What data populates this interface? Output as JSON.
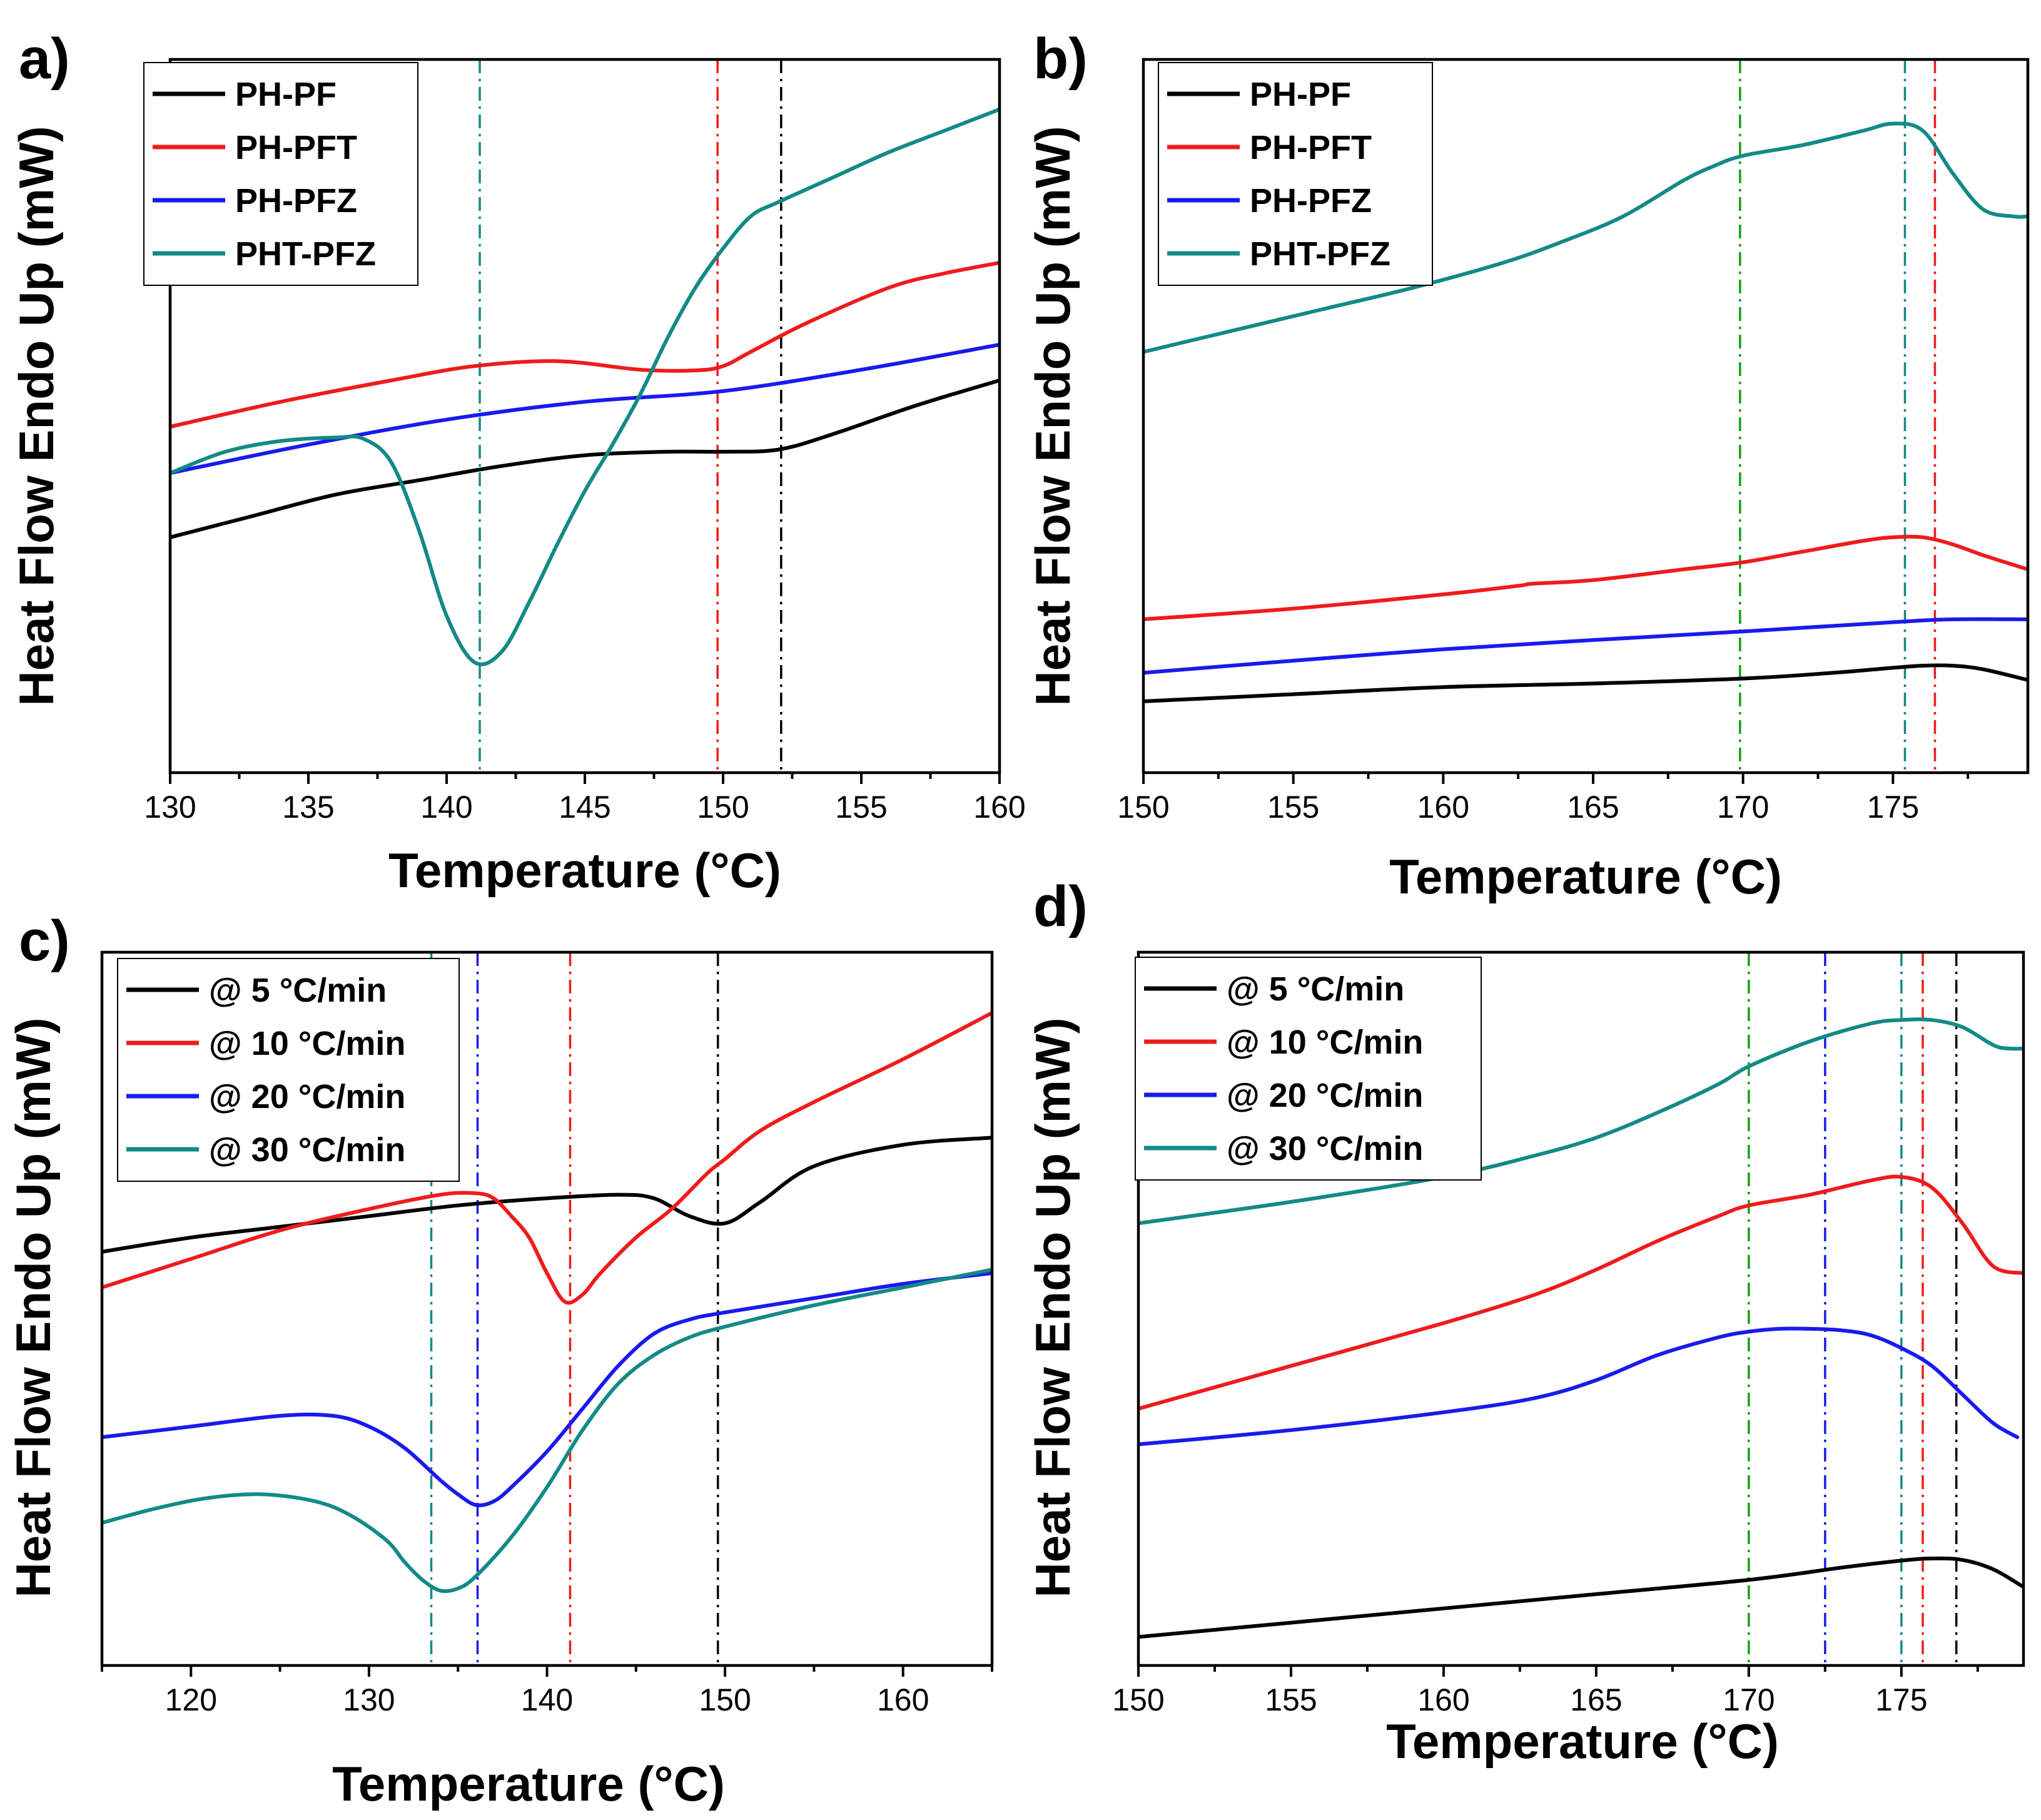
{
  "colors": {
    "black": "#000000",
    "red": "#ee1c1c",
    "blue": "#1a1aee",
    "teal": "#138a85",
    "green": "#12a012",
    "axis": "#000000"
  },
  "chart_data": [
    {
      "panel": "a)",
      "type": "line",
      "xlabel": "Temperature (°C)",
      "ylabel": "Heat Flow Endo Up (mW)",
      "xlim": [
        130,
        160
      ],
      "ylim": [
        0,
        100
      ],
      "xticks": [
        "130",
        "135",
        "140",
        "145",
        "150",
        "155",
        "160"
      ],
      "legend_position": "top-left",
      "series": [
        {
          "name": "PH-PF",
          "color": "#000000",
          "x": [
            130,
            133,
            136,
            139,
            142,
            145,
            148,
            150,
            152,
            154,
            157,
            160
          ],
          "y": [
            33,
            36,
            39,
            41,
            43,
            44.5,
            45,
            45,
            45.3,
            47.5,
            51.5,
            55
          ]
        },
        {
          "name": "PH-PFT",
          "color": "#ee1c1c",
          "x": [
            130,
            134,
            138,
            141,
            144,
            147,
            149,
            150,
            151,
            153,
            156,
            158,
            160
          ],
          "y": [
            48.5,
            52,
            55,
            57,
            57.7,
            56.5,
            56.4,
            57,
            59,
            63,
            68,
            70,
            71.5
          ]
        },
        {
          "name": "PH-PFZ",
          "color": "#1a1aee",
          "x": [
            130,
            135,
            140,
            145,
            150,
            155,
            160
          ],
          "y": [
            42,
            46,
            49.5,
            52,
            53.5,
            56.5,
            60
          ]
        },
        {
          "name": "PHT-PFZ",
          "color": "#138a85",
          "x": [
            130,
            132,
            134,
            136,
            137,
            138,
            139,
            140,
            141,
            142,
            143,
            144,
            145,
            146,
            147,
            148,
            149,
            150,
            151,
            152,
            154,
            156,
            158,
            160
          ],
          "y": [
            42,
            45,
            46.5,
            47,
            46.8,
            43.5,
            34,
            22,
            15.5,
            17,
            24,
            32,
            39.5,
            46,
            53,
            61,
            68,
            73.5,
            78,
            80,
            83.5,
            87,
            90,
            93
          ]
        }
      ],
      "vlines": [
        {
          "x": 141.2,
          "color": "#138a85"
        },
        {
          "x": 149.8,
          "color": "#ee1c1c"
        },
        {
          "x": 152.1,
          "color": "#000000"
        }
      ]
    },
    {
      "panel": "b)",
      "type": "line",
      "xlabel": "Temperature (°C)",
      "ylabel": "Heat Flow Endo Up (mW)",
      "xlim": [
        150,
        179.5
      ],
      "ylim": [
        0,
        100
      ],
      "xticks": [
        "150",
        "155",
        "160",
        "165",
        "170",
        "175"
      ],
      "legend_position": "top-left",
      "series": [
        {
          "name": "PH-PF",
          "color": "#000000",
          "x": [
            150,
            155,
            160,
            165,
            170,
            173,
            175,
            176,
            177,
            178,
            179.5
          ],
          "y": [
            10,
            11,
            12,
            12.5,
            13.2,
            14,
            14.7,
            15,
            15,
            14.5,
            13
          ]
        },
        {
          "name": "PH-PFT",
          "color": "#ee1c1c",
          "x": [
            150,
            155,
            160,
            162.5,
            163,
            165,
            168,
            170,
            172,
            174,
            175,
            176,
            177,
            178,
            179.5
          ],
          "y": [
            21.5,
            23,
            25,
            26.2,
            26.5,
            27,
            28.5,
            29.5,
            31,
            32.5,
            33,
            33,
            32,
            30.5,
            28.5
          ]
        },
        {
          "name": "PH-PFZ",
          "color": "#1a1aee",
          "x": [
            150,
            155,
            160,
            165,
            170,
            175,
            177,
            179.5
          ],
          "y": [
            14,
            15.7,
            17.3,
            18.6,
            19.8,
            21.1,
            21.5,
            21.5
          ]
        },
        {
          "name": "PHT-PFZ",
          "color": "#138a85",
          "x": [
            150,
            153,
            156,
            159,
            162,
            164,
            166,
            168,
            169,
            170,
            172,
            174,
            175,
            176,
            177,
            178,
            179,
            179.5
          ],
          "y": [
            59,
            62,
            65,
            68,
            71.5,
            74.5,
            78,
            83,
            85,
            86.5,
            88,
            90,
            91,
            90,
            84,
            79,
            78,
            78
          ]
        }
      ],
      "vlines": [
        {
          "x": 169.9,
          "color": "#12a012"
        },
        {
          "x": 175.4,
          "color": "#138a85"
        },
        {
          "x": 176.4,
          "color": "#ee1c1c"
        }
      ]
    },
    {
      "panel": "c)",
      "type": "line",
      "xlabel": "Temperature (°C)",
      "ylabel": "Heat Flow Endo Up (mW)",
      "xlim": [
        115,
        165
      ],
      "ylim": [
        0,
        100
      ],
      "xticks": [
        "120",
        "130",
        "140",
        "150",
        "160"
      ],
      "legend_position": "top-left",
      "series": [
        {
          "name": "@ 5 °C/min",
          "color": "#000000",
          "x": [
            115,
            120,
            125,
            130,
            135,
            140,
            144,
            146,
            148,
            150,
            152,
            155,
            160,
            165
          ],
          "y": [
            58,
            60,
            61.5,
            63,
            64.5,
            65.5,
            66,
            65.5,
            63,
            62,
            65,
            70,
            73,
            74
          ]
        },
        {
          "name": "@ 10 °C/min",
          "color": "#ee1c1c",
          "x": [
            115,
            120,
            125,
            130,
            134,
            136,
            137,
            138,
            139,
            140,
            141,
            142,
            143,
            145,
            147,
            149,
            150,
            152,
            155,
            160,
            165
          ],
          "y": [
            53,
            57,
            61,
            64,
            66,
            66.2,
            65.5,
            63,
            60,
            55,
            51,
            52,
            55,
            60,
            64,
            69,
            71,
            75,
            79,
            85,
            91.5
          ]
        },
        {
          "name": "@ 20 °C/min",
          "color": "#1a1aee",
          "x": [
            115,
            120,
            125,
            128,
            130,
            132,
            134,
            135,
            136,
            137,
            138,
            140,
            142,
            144,
            146,
            148,
            150,
            155,
            160,
            165
          ],
          "y": [
            32,
            33.5,
            35,
            35,
            33.5,
            30.5,
            26,
            24,
            22.5,
            23,
            25,
            30,
            36,
            42,
            46.5,
            48.5,
            49.5,
            51.5,
            53.5,
            55
          ]
        },
        {
          "name": "@ 30 °C/min",
          "color": "#138a85",
          "x": [
            115,
            118,
            121,
            124,
            127,
            129,
            131,
            132,
            133,
            134,
            135,
            136,
            138,
            140,
            142,
            144,
            146,
            148,
            150,
            155,
            160,
            165
          ],
          "y": [
            20,
            22,
            23.5,
            24,
            23,
            21,
            17.5,
            14.5,
            12,
            10.5,
            10.8,
            12.5,
            18,
            25,
            33,
            39.5,
            43.5,
            46,
            47.5,
            50.5,
            53,
            55.5
          ]
        }
      ],
      "vlines": [
        {
          "x": 133.5,
          "color": "#138a85"
        },
        {
          "x": 136.1,
          "color": "#1a1aee"
        },
        {
          "x": 141.3,
          "color": "#ee1c1c"
        },
        {
          "x": 149.6,
          "color": "#000000"
        }
      ]
    },
    {
      "panel": "d)",
      "type": "line",
      "xlabel": "Temperature (°C)",
      "ylabel": "Heat Flow Endo Up (mW)",
      "xlim": [
        150,
        179
      ],
      "ylim": [
        0,
        100
      ],
      "xticks": [
        "150",
        "155",
        "160",
        "165",
        "170",
        "175"
      ],
      "legend_position": "top-left",
      "series": [
        {
          "name": "@ 5 °C/min",
          "color": "#000000",
          "x": [
            150,
            155,
            160,
            165,
            170,
            173,
            175,
            176,
            177,
            178,
            179
          ],
          "y": [
            4,
            6,
            8,
            10,
            12,
            13.7,
            14.7,
            15,
            14.8,
            13.5,
            11
          ]
        },
        {
          "name": "@ 10 °C/min",
          "color": "#ee1c1c",
          "x": [
            150,
            155,
            160,
            163,
            165,
            167,
            169,
            170,
            172,
            174,
            175,
            176,
            177,
            178,
            179
          ],
          "y": [
            36,
            42,
            48,
            52,
            55.5,
            59.5,
            63,
            64.5,
            66,
            68,
            68.5,
            67,
            62,
            56,
            55
          ]
        },
        {
          "name": "@ 20 °C/min",
          "color": "#1a1aee",
          "x": [
            150,
            155,
            160,
            163,
            165,
            167,
            169,
            170,
            171,
            172,
            173,
            174,
            175,
            176,
            177,
            178,
            178.8
          ],
          "y": [
            31,
            33,
            35.5,
            37.5,
            40,
            43.5,
            46,
            46.8,
            47.2,
            47.2,
            47,
            46.3,
            44.5,
            42,
            38,
            34,
            32
          ]
        },
        {
          "name": "@ 30 °C/min",
          "color": "#138a85",
          "x": [
            150,
            155,
            160,
            163,
            165,
            167,
            169,
            170,
            172,
            174,
            175,
            176,
            177,
            178,
            178.5,
            179
          ],
          "y": [
            62,
            65,
            68.5,
            71.5,
            74,
            77.5,
            81.5,
            84,
            87.5,
            90,
            90.5,
            90.5,
            89.5,
            87,
            86.5,
            86.5
          ]
        }
      ],
      "vlines": [
        {
          "x": 170,
          "color": "#12a012"
        },
        {
          "x": 172.5,
          "color": "#1a1aee"
        },
        {
          "x": 175,
          "color": "#138a85"
        },
        {
          "x": 175.7,
          "color": "#ee1c1c"
        },
        {
          "x": 176.8,
          "color": "#000000"
        }
      ]
    }
  ]
}
